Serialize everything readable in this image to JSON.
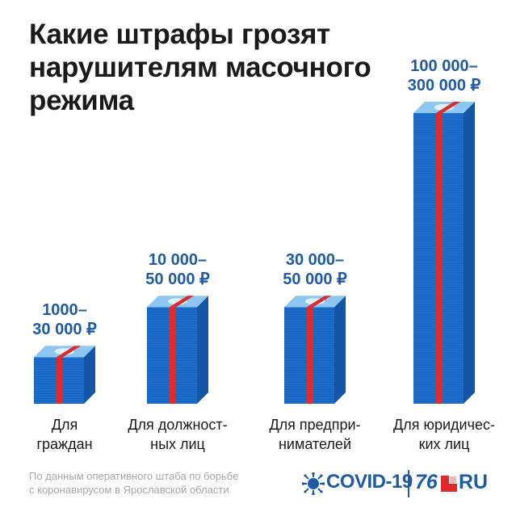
{
  "title_lines": [
    "Какие штрафы грозят",
    "нарушителям масочного",
    "режима"
  ],
  "colors": {
    "stack_front": "#1f6fd0",
    "stack_side": "#1555a8",
    "stack_top": "#8ec7f2",
    "band": "#e02a2a",
    "label_blue": "#1f5aa6"
  },
  "chart_data": {
    "type": "bar",
    "categories": [
      [
        "Для",
        "граждан"
      ],
      [
        "Для должност-",
        "ных лиц"
      ],
      [
        "Для предпри-",
        "нимателей"
      ],
      [
        "Для юридичес-",
        "ких лиц"
      ]
    ],
    "value_labels": [
      [
        "1000–",
        "30 000 ₽"
      ],
      [
        "10 000–",
        "50 000 ₽"
      ],
      [
        "30 000–",
        "50 000 ₽"
      ],
      [
        "100 000–",
        "300 000 ₽"
      ]
    ],
    "min_values": [
      1000,
      10000,
      30000,
      100000
    ],
    "max_values": [
      30000,
      50000,
      50000,
      300000
    ],
    "unit": "₽"
  },
  "footer": {
    "source_lines": [
      "По данным оперативного штаба по борьбе",
      "с коронавирусом в Ярославской области"
    ],
    "covid_logo": "COVID-19",
    "site_number": "76",
    "site_suffix": "RU",
    "virus_icon": "virus-icon"
  }
}
